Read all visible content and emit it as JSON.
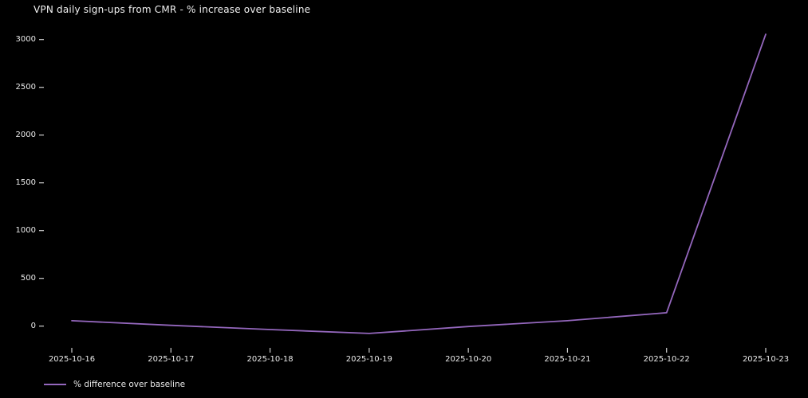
{
  "chart": {
    "background": "#000000",
    "text_color": "#eaeaea",
    "accent": "#9467bd"
  },
  "chart_data": {
    "type": "line",
    "title": "VPN daily sign-ups from CMR - % increase over baseline",
    "categories": [
      "2025-10-16",
      "2025-10-17",
      "2025-10-18",
      "2025-10-19",
      "2025-10-20",
      "2025-10-21",
      "2025-10-22",
      "2025-10-23"
    ],
    "series": [
      {
        "name": "% difference over baseline",
        "color": "#9467bd",
        "values": [
          57,
          8,
          -36,
          -77,
          -4,
          57,
          140,
          3055
        ]
      }
    ],
    "xlabel": "",
    "ylabel": "",
    "yticks": [
      0,
      500,
      1000,
      1500,
      2000,
      2500,
      3000
    ],
    "ylim": [
      -233,
      3211
    ],
    "grid": false,
    "legend_position": "lower-left",
    "legend_label": "% difference over baseline"
  }
}
